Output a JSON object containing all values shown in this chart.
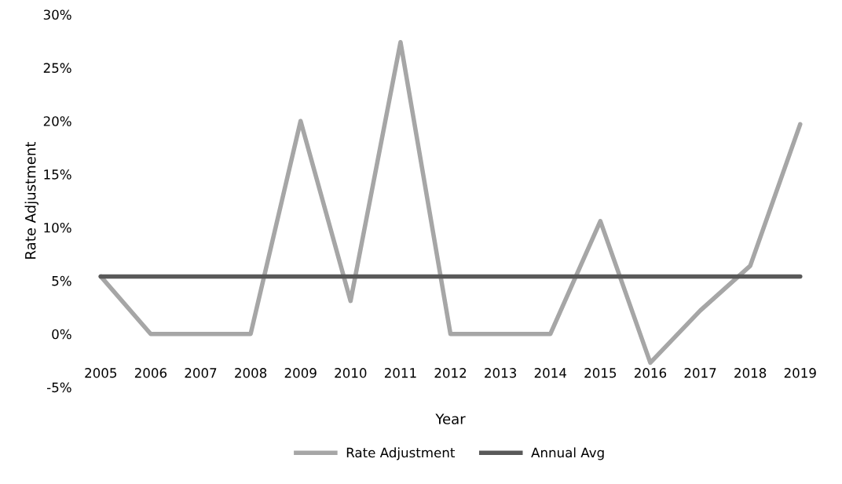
{
  "chart_data": {
    "type": "line",
    "xlabel": "Year",
    "ylabel": "Rate Adjustment",
    "categories": [
      "2005",
      "2006",
      "2007",
      "2008",
      "2009",
      "2010",
      "2011",
      "2012",
      "2013",
      "2014",
      "2015",
      "2016",
      "2017",
      "2018",
      "2019"
    ],
    "series": [
      {
        "name": "Rate Adjustment",
        "color": "#a6a6a6",
        "values": [
          5.4,
          0,
          0,
          0,
          20,
          3.1,
          27.4,
          0,
          0,
          0,
          10.6,
          -2.7,
          2.2,
          6.4,
          19.7
        ]
      },
      {
        "name": "Annual Avg",
        "color": "#595959",
        "values": [
          5.4,
          5.4,
          5.4,
          5.4,
          5.4,
          5.4,
          5.4,
          5.4,
          5.4,
          5.4,
          5.4,
          5.4,
          5.4,
          5.4,
          5.4
        ]
      }
    ],
    "ylim": [
      -5,
      30
    ],
    "yticks": [
      {
        "value": -5,
        "label": "-5%"
      },
      {
        "value": 0,
        "label": "0%"
      },
      {
        "value": 5,
        "label": "5%"
      },
      {
        "value": 10,
        "label": "10%"
      },
      {
        "value": 15,
        "label": "15%"
      },
      {
        "value": 20,
        "label": "20%"
      },
      {
        "value": 25,
        "label": "25%"
      },
      {
        "value": 30,
        "label": "30%"
      }
    ],
    "grid": false,
    "legend": "bottom",
    "marker": "none",
    "line_style": "solid"
  }
}
